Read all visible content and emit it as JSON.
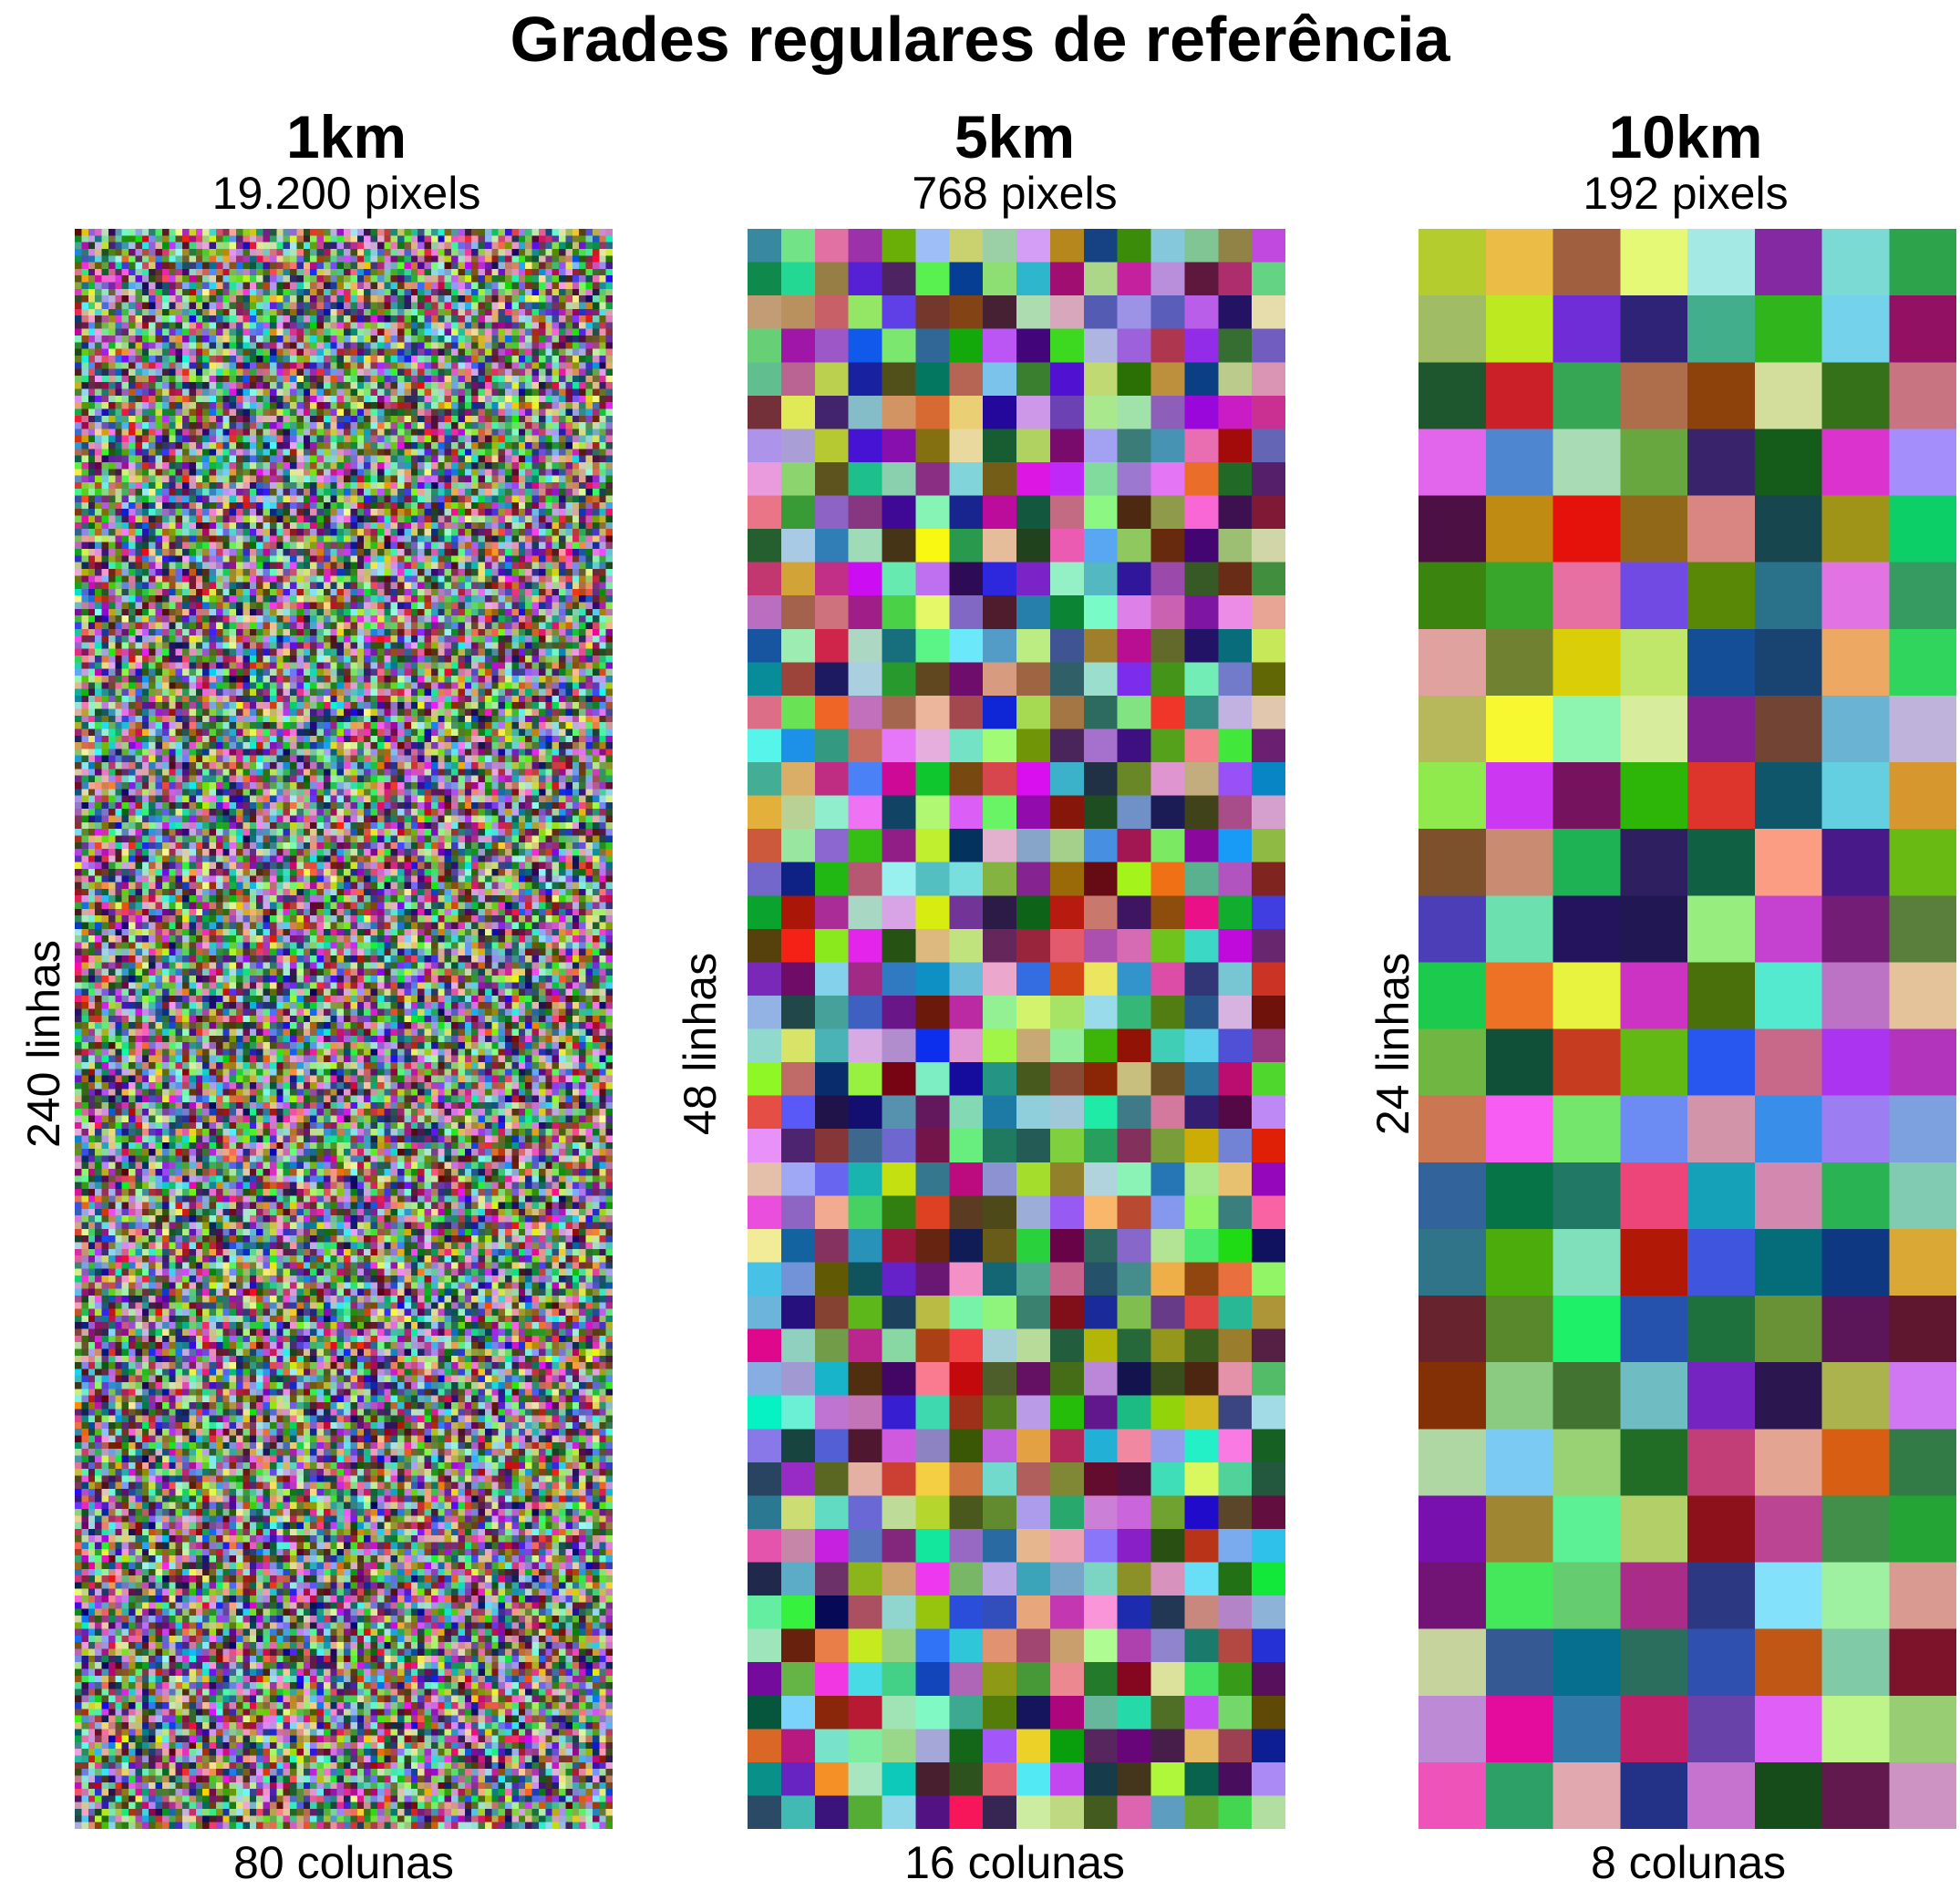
{
  "title": "Grades regulares de referência",
  "panels": [
    {
      "resolution": "1km",
      "pixels": "19.200 pixels",
      "columns_label": "80 colunas",
      "rows_label": "240 linhas",
      "columns": 80,
      "rows": 240
    },
    {
      "resolution": "5km",
      "pixels": "768 pixels",
      "columns_label": "16 colunas",
      "rows_label": "48 linhas",
      "columns": 16,
      "rows": 48
    },
    {
      "resolution": "10km",
      "pixels": "192 pixels",
      "columns_label": "8 colunas",
      "rows_label": "24 linhas",
      "columns": 8,
      "rows": 24
    }
  ]
}
